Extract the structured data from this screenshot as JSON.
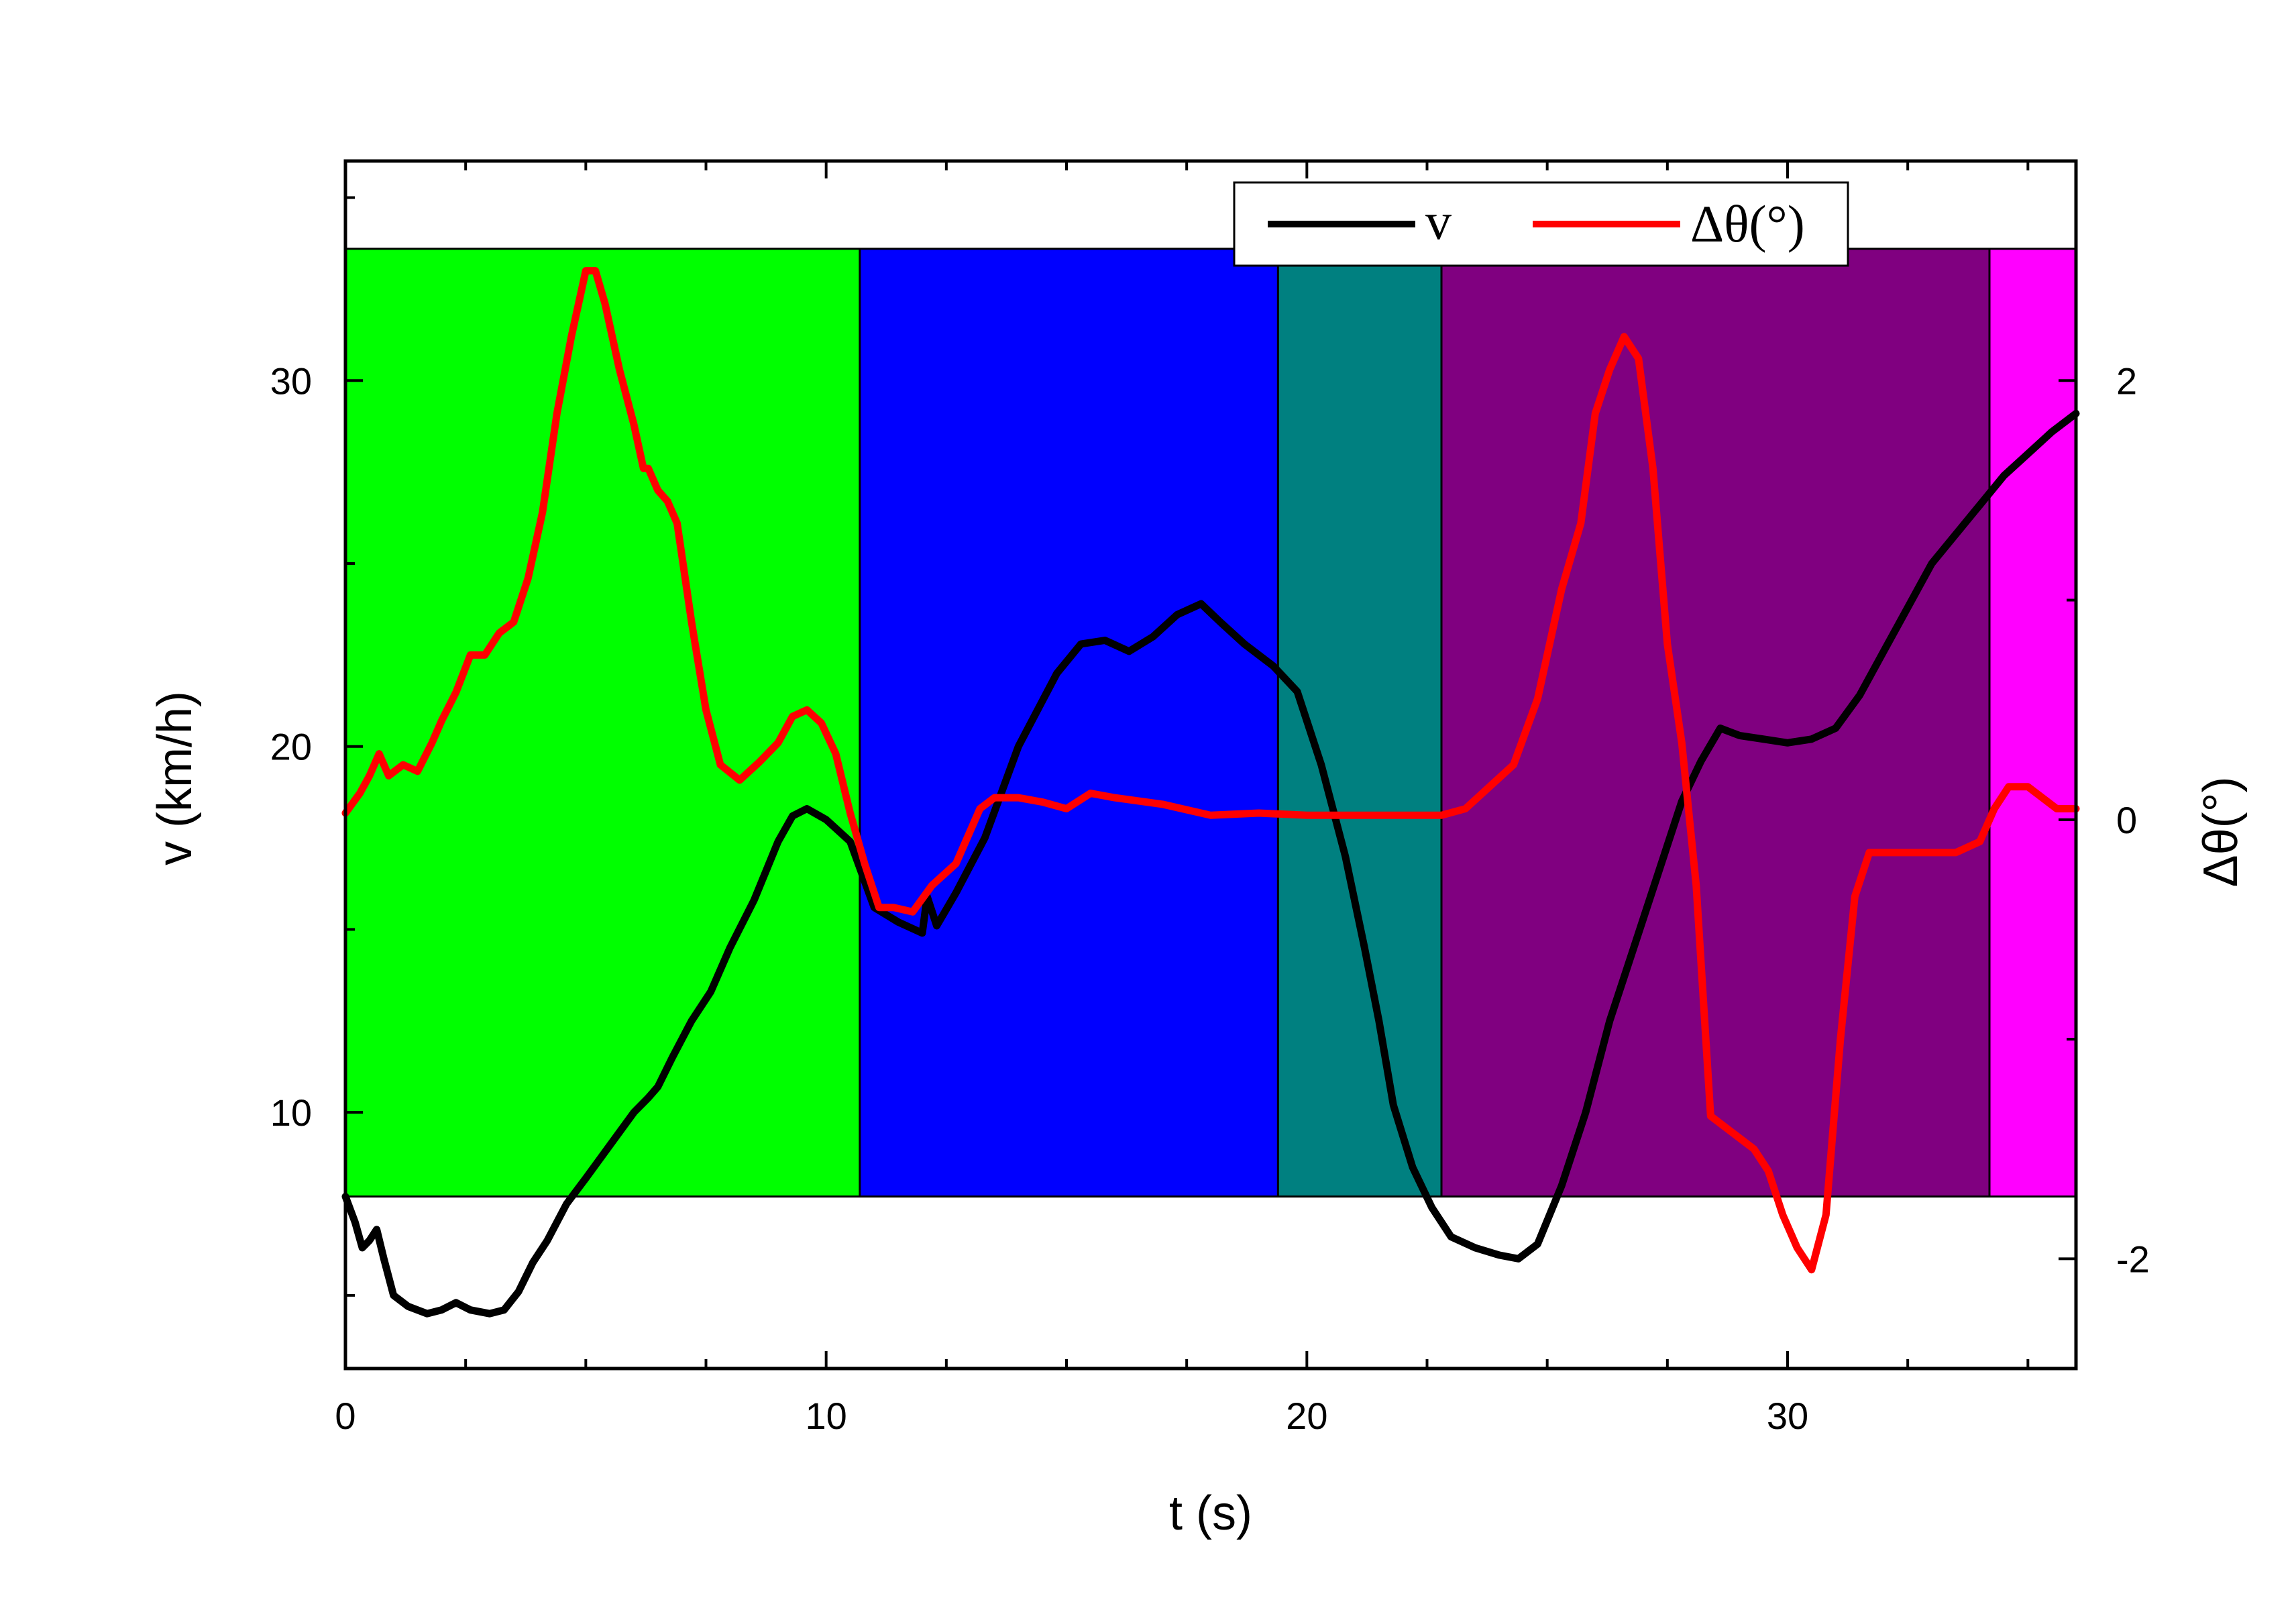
{
  "chart_data": {
    "type": "line",
    "xlabel": "t (s)",
    "ylabel": "v (km/h)",
    "y2label": "Δθ(°)",
    "xlim": [
      0,
      36
    ],
    "ylim": [
      3,
      36
    ],
    "y2lim": [
      -2.5,
      3.0
    ],
    "xticks": [
      0,
      10,
      20,
      30
    ],
    "yticks": [
      10,
      20,
      30
    ],
    "y2ticks": [
      -2,
      0,
      2
    ],
    "legend_position": "top-right",
    "bands": [
      {
        "x0": 0,
        "x1": 10.7,
        "color": "#00ff00"
      },
      {
        "x0": 10.7,
        "x1": 19.4,
        "color": "#0000ff"
      },
      {
        "x0": 19.4,
        "x1": 22.8,
        "color": "#008080"
      },
      {
        "x0": 22.8,
        "x1": 34.2,
        "color": "#800080"
      },
      {
        "x0": 34.2,
        "x1": 36,
        "color": "#ff00ff"
      }
    ],
    "band_y_range": [
      7.7,
      33.6
    ],
    "series": [
      {
        "name": "v",
        "axis": "left",
        "color": "#000000",
        "x": [
          0,
          0.2,
          0.35,
          0.5,
          0.65,
          0.8,
          1.0,
          1.3,
          1.7,
          2.0,
          2.3,
          2.6,
          3.0,
          3.3,
          3.6,
          3.9,
          4.2,
          4.6,
          5.0,
          5.5,
          6.0,
          6.3,
          6.5,
          6.8,
          7.2,
          7.6,
          8.0,
          8.5,
          9.0,
          9.3,
          9.6,
          10.0,
          10.5,
          11.0,
          11.5,
          12.0,
          12.1,
          12.3,
          12.7,
          13.3,
          14.0,
          14.8,
          15.3,
          15.8,
          16.3,
          16.8,
          17.3,
          17.8,
          18.2,
          18.7,
          19.3,
          19.8,
          20.3,
          20.8,
          21.2,
          21.5,
          21.8,
          22.2,
          22.6,
          23.0,
          23.5,
          24.0,
          24.4,
          24.8,
          25.3,
          25.8,
          26.3,
          26.8,
          27.3,
          27.8,
          28.2,
          28.6,
          29.0,
          29.5,
          30.0,
          30.5,
          31.0,
          31.5,
          32.0,
          32.5,
          33.0,
          33.5,
          34.0,
          34.5,
          35.0,
          35.5,
          36.0
        ],
        "values": [
          7.7,
          7.0,
          6.3,
          6.5,
          6.8,
          6.0,
          5.0,
          4.7,
          4.5,
          4.6,
          4.8,
          4.6,
          4.5,
          4.6,
          5.1,
          5.9,
          6.5,
          7.5,
          8.2,
          9.1,
          10.0,
          10.4,
          10.7,
          11.5,
          12.5,
          13.3,
          14.5,
          15.8,
          17.4,
          18.1,
          18.3,
          18.0,
          17.4,
          15.6,
          15.2,
          14.9,
          15.9,
          15.1,
          16.0,
          17.5,
          20.0,
          22.0,
          22.8,
          22.9,
          22.6,
          23.0,
          23.6,
          23.9,
          23.4,
          22.8,
          22.2,
          21.5,
          19.5,
          17.0,
          14.5,
          12.5,
          10.2,
          8.5,
          7.4,
          6.6,
          6.3,
          6.1,
          6.0,
          6.4,
          8.0,
          10.0,
          12.5,
          14.5,
          16.5,
          18.5,
          19.6,
          20.5,
          20.3,
          20.2,
          20.1,
          20.2,
          20.5,
          21.4,
          22.6,
          23.8,
          25.0,
          25.8,
          26.6,
          27.4,
          28.0,
          28.6,
          29.1
        ]
      },
      {
        "name": "Δθ(°)",
        "axis": "right",
        "color": "#ff0000",
        "x": [
          0,
          0.3,
          0.5,
          0.7,
          0.9,
          1.2,
          1.5,
          1.8,
          2.0,
          2.3,
          2.6,
          2.9,
          3.2,
          3.5,
          3.8,
          4.1,
          4.4,
          4.7,
          5.0,
          5.2,
          5.4,
          5.7,
          6.0,
          6.2,
          6.3,
          6.5,
          6.7,
          6.9,
          7.0,
          7.2,
          7.5,
          7.8,
          8.2,
          8.6,
          9.0,
          9.3,
          9.6,
          9.9,
          10.2,
          10.5,
          10.8,
          11.1,
          11.4,
          11.8,
          12.2,
          12.7,
          13.2,
          13.5,
          14.0,
          14.5,
          15.0,
          15.5,
          16.0,
          17.0,
          18.0,
          19.0,
          20.0,
          21.0,
          22.0,
          22.8,
          23.3,
          23.8,
          24.3,
          24.8,
          25.3,
          25.7,
          26.0,
          26.3,
          26.6,
          26.9,
          27.2,
          27.5,
          27.8,
          28.1,
          28.4,
          28.7,
          29.0,
          29.3,
          29.6,
          29.9,
          30.2,
          30.5,
          30.8,
          31.1,
          31.4,
          31.7,
          32.0,
          32.5,
          33.0,
          33.5,
          34.0,
          34.3,
          34.6,
          35.0,
          35.3,
          35.6,
          36.0
        ],
        "values": [
          0.03,
          0.12,
          0.2,
          0.3,
          0.2,
          0.25,
          0.22,
          0.35,
          0.45,
          0.58,
          0.75,
          0.75,
          0.85,
          0.9,
          1.1,
          1.4,
          1.85,
          2.2,
          2.5,
          2.5,
          2.35,
          2.05,
          1.8,
          1.6,
          1.6,
          1.5,
          1.45,
          1.35,
          1.2,
          0.9,
          0.5,
          0.25,
          0.18,
          0.26,
          0.35,
          0.47,
          0.5,
          0.44,
          0.3,
          0.03,
          -0.2,
          -0.4,
          -0.4,
          -0.42,
          -0.3,
          -0.2,
          0.05,
          0.1,
          0.1,
          0.08,
          0.05,
          0.12,
          0.1,
          0.07,
          0.02,
          0.03,
          0.02,
          0.02,
          0.02,
          0.02,
          0.05,
          0.15,
          0.25,
          0.55,
          1.05,
          1.35,
          1.85,
          2.05,
          2.2,
          2.1,
          1.6,
          0.8,
          0.35,
          -0.3,
          -1.35,
          -1.4,
          -1.45,
          -1.5,
          -1.6,
          -1.8,
          -1.95,
          -2.05,
          -1.8,
          -1.0,
          -0.35,
          -0.15,
          -0.15,
          -0.15,
          -0.15,
          -0.15,
          -0.1,
          0.05,
          0.15,
          0.15,
          0.1,
          0.05,
          0.05
        ]
      }
    ]
  }
}
